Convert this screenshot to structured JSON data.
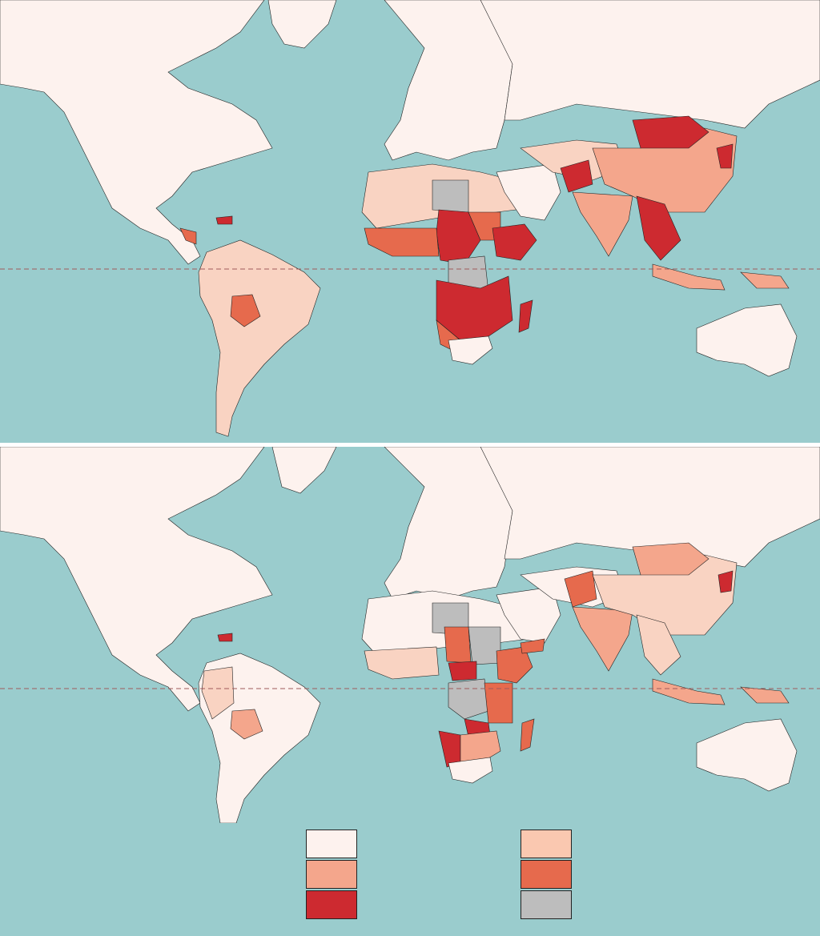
{
  "map": {
    "colors": {
      "ocean": "#9acccd",
      "land": "#fdf2ee",
      "light": "#fac8b0",
      "medium_light": "#f4a68c",
      "medium": "#e66a4d",
      "dark": "#cd2a30",
      "no_data": "#bdbdbd",
      "border": "#222222",
      "equator": "#a05a5a"
    },
    "panels": [
      {
        "id": "top-map"
      },
      {
        "id": "bottom-map"
      }
    ]
  },
  "legend": {
    "left": [
      {
        "swatch": "land"
      },
      {
        "swatch": "medium_light"
      },
      {
        "swatch": "dark"
      }
    ],
    "right": [
      {
        "swatch": "light"
      },
      {
        "swatch": "medium"
      },
      {
        "swatch": "no_data"
      }
    ]
  }
}
